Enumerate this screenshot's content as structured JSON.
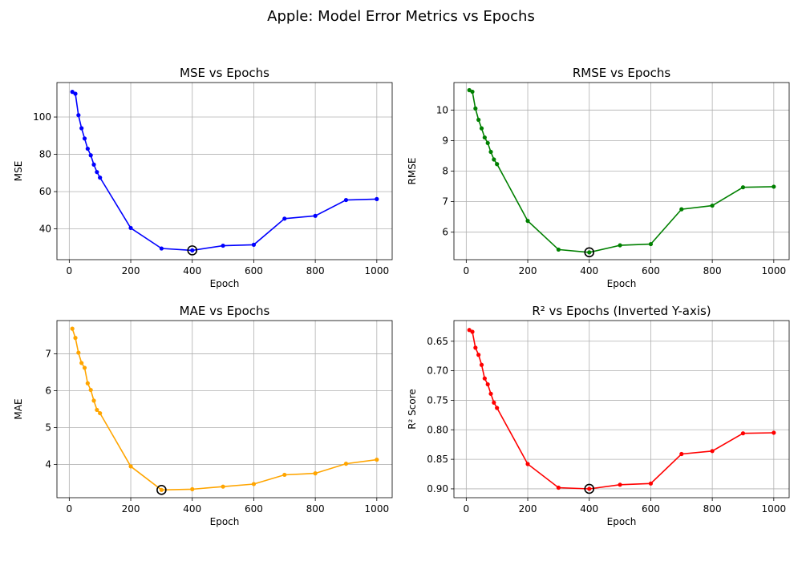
{
  "figure": {
    "suptitle": "Apple: Model Error Metrics vs Epochs"
  },
  "chart_data": [
    {
      "type": "line",
      "title": "MSE vs Epochs",
      "xlabel": "Epoch",
      "ylabel": "MSE",
      "color": "#0000ff",
      "x": [
        10,
        20,
        30,
        40,
        50,
        60,
        70,
        80,
        90,
        100,
        200,
        300,
        400,
        500,
        600,
        700,
        800,
        900,
        1000
      ],
      "y": [
        113.5,
        112.5,
        101,
        94,
        88.5,
        83,
        79.5,
        74.5,
        70.5,
        67.5,
        40.5,
        29.5,
        28.5,
        31,
        31.5,
        45.5,
        47,
        55.5,
        56
      ],
      "xlim": [
        -40,
        1050
      ],
      "ylim": [
        23.5,
        118.5
      ],
      "xticks": [
        0,
        200,
        400,
        600,
        800,
        1000
      ],
      "yticks": [
        40,
        60,
        80,
        100
      ],
      "ytick_labels": [
        "40",
        "60",
        "80",
        "100"
      ],
      "highlight": {
        "x": 400,
        "y": 28.5
      },
      "grid": true,
      "inverted_y": false
    },
    {
      "type": "line",
      "title": "RMSE vs Epochs",
      "xlabel": "Epoch",
      "ylabel": "RMSE",
      "color": "#008000",
      "x": [
        10,
        20,
        30,
        40,
        50,
        60,
        70,
        80,
        90,
        100,
        200,
        300,
        400,
        500,
        600,
        700,
        800,
        900,
        1000
      ],
      "y": [
        10.65,
        10.6,
        10.05,
        9.68,
        9.4,
        9.1,
        8.92,
        8.63,
        8.38,
        8.23,
        6.37,
        5.43,
        5.34,
        5.57,
        5.61,
        6.75,
        6.87,
        7.47,
        7.49
      ],
      "xlim": [
        -40,
        1050
      ],
      "ylim": [
        5.1,
        10.9
      ],
      "xticks": [
        0,
        200,
        400,
        600,
        800,
        1000
      ],
      "yticks": [
        6,
        7,
        8,
        9,
        10
      ],
      "ytick_labels": [
        "6",
        "7",
        "8",
        "9",
        "10"
      ],
      "highlight": {
        "x": 400,
        "y": 5.34
      },
      "grid": true,
      "inverted_y": false
    },
    {
      "type": "line",
      "title": "MAE vs Epochs",
      "xlabel": "Epoch",
      "ylabel": "MAE",
      "color": "#ffa500",
      "x": [
        10,
        20,
        30,
        40,
        50,
        60,
        70,
        80,
        90,
        100,
        200,
        300,
        400,
        500,
        600,
        700,
        800,
        900,
        1000
      ],
      "y": [
        7.68,
        7.43,
        7.03,
        6.75,
        6.62,
        6.2,
        6.02,
        5.73,
        5.48,
        5.39,
        3.95,
        3.31,
        3.33,
        3.4,
        3.47,
        3.72,
        3.76,
        4.02,
        4.13
      ],
      "xlim": [
        -40,
        1050
      ],
      "ylim": [
        3.1,
        7.9
      ],
      "xticks": [
        0,
        200,
        400,
        600,
        800,
        1000
      ],
      "yticks": [
        4,
        5,
        6,
        7
      ],
      "ytick_labels": [
        "4",
        "5",
        "6",
        "7"
      ],
      "highlight": {
        "x": 300,
        "y": 3.31
      },
      "grid": true,
      "inverted_y": false
    },
    {
      "type": "line",
      "title": "R² vs Epochs (Inverted Y-axis)",
      "xlabel": "Epoch",
      "ylabel": "R² Score",
      "color": "#ff0000",
      "x": [
        10,
        20,
        30,
        40,
        50,
        60,
        70,
        80,
        90,
        100,
        200,
        300,
        400,
        500,
        600,
        700,
        800,
        900,
        1000
      ],
      "y": [
        0.631,
        0.634,
        0.661,
        0.673,
        0.69,
        0.713,
        0.723,
        0.739,
        0.754,
        0.763,
        0.858,
        0.898,
        0.9,
        0.893,
        0.891,
        0.841,
        0.836,
        0.806,
        0.805
      ],
      "xlim": [
        -40,
        1050
      ],
      "ylim": [
        0.615,
        0.915
      ],
      "xticks": [
        0,
        200,
        400,
        600,
        800,
        1000
      ],
      "yticks": [
        0.65,
        0.7,
        0.75,
        0.8,
        0.85,
        0.9
      ],
      "ytick_labels": [
        "0.65",
        "0.70",
        "0.75",
        "0.80",
        "0.85",
        "0.90"
      ],
      "highlight": {
        "x": 400,
        "y": 0.9
      },
      "grid": true,
      "inverted_y": true
    }
  ]
}
